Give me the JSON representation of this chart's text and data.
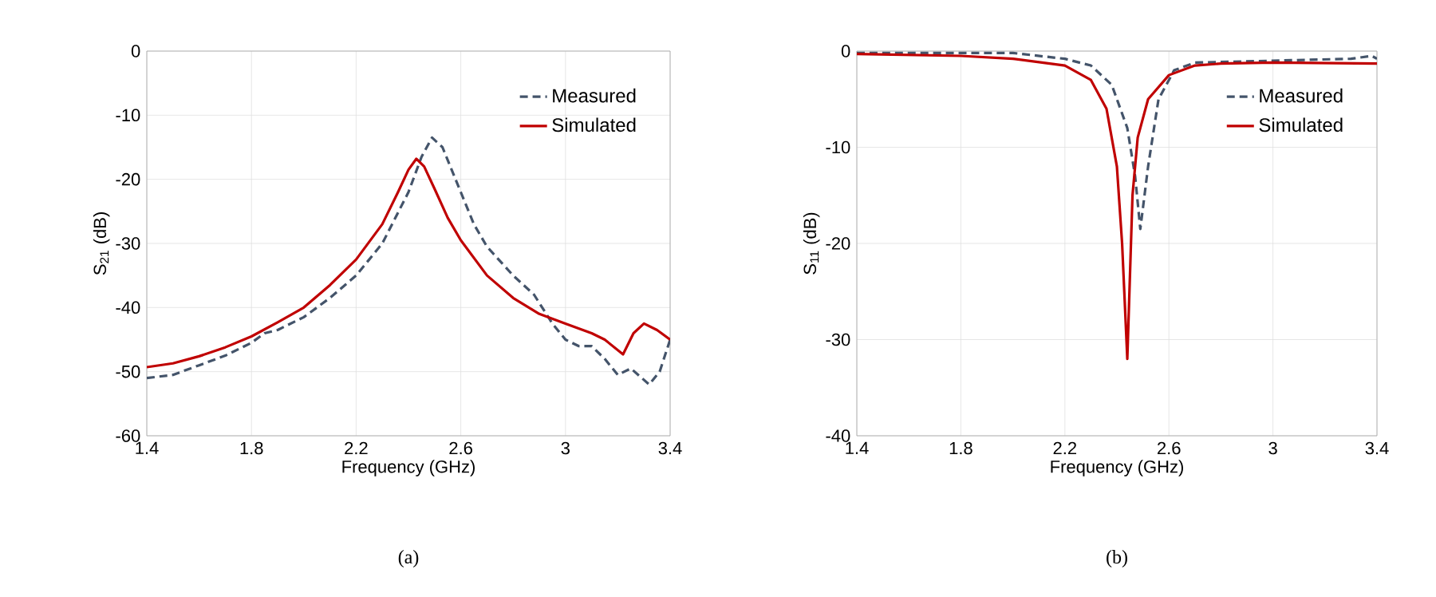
{
  "chart_data": [
    {
      "type": "line",
      "xlabel": "Frequency (GHz)",
      "ylabel": "S$_{21}$ (dB)",
      "annotations": [
        "(a)"
      ],
      "xlim": [
        1.4,
        3.4
      ],
      "xticks": [
        1.4,
        1.8,
        2.2,
        2.6,
        3,
        3.4
      ],
      "ylim": [
        -60,
        0
      ],
      "yticks": [
        -60,
        -50,
        -40,
        -30,
        -20,
        -10,
        0
      ],
      "grid": true,
      "legend": "top right",
      "series": [
        {
          "name": "Measured",
          "color": "#44546a",
          "line_style": "dashed",
          "x": [
            1.4,
            1.5,
            1.6,
            1.7,
            1.8,
            1.85,
            1.9,
            2.0,
            2.1,
            2.2,
            2.3,
            2.4,
            2.45,
            2.49,
            2.53,
            2.6,
            2.65,
            2.7,
            2.8,
            2.88,
            2.95,
            3.0,
            3.05,
            3.1,
            3.15,
            3.2,
            3.25,
            3.32,
            3.36,
            3.4
          ],
          "values": [
            -51,
            -50.5,
            -49,
            -47.5,
            -45.5,
            -44,
            -43.5,
            -41.5,
            -38.5,
            -35,
            -30,
            -22,
            -16.5,
            -13.5,
            -15,
            -22,
            -27,
            -30.5,
            -35,
            -38,
            -42.5,
            -45,
            -46,
            -46,
            -48,
            -50.5,
            -49.5,
            -52,
            -50,
            -45
          ]
        },
        {
          "name": "Simulated",
          "color": "#c00000",
          "line_style": "solid",
          "x": [
            1.4,
            1.5,
            1.6,
            1.7,
            1.8,
            1.9,
            2.0,
            2.1,
            2.2,
            2.3,
            2.36,
            2.4,
            2.43,
            2.46,
            2.5,
            2.55,
            2.6,
            2.7,
            2.8,
            2.9,
            3.0,
            3.1,
            3.15,
            3.22,
            3.26,
            3.3,
            3.35,
            3.4
          ],
          "values": [
            -49.3,
            -48.7,
            -47.6,
            -46.2,
            -44.5,
            -42.3,
            -40,
            -36.5,
            -32.5,
            -27,
            -22,
            -18.5,
            -16.8,
            -18,
            -21.5,
            -26,
            -29.5,
            -35,
            -38.5,
            -41,
            -42.5,
            -44,
            -45,
            -47.3,
            -44,
            -42.5,
            -43.5,
            -45
          ]
        }
      ]
    },
    {
      "type": "line",
      "xlabel": "Frequency (GHz)",
      "ylabel": "S$_{11}$ (dB)",
      "annotations": [
        "(b)"
      ],
      "xlim": [
        1.4,
        3.4
      ],
      "xticks": [
        1.4,
        1.8,
        2.2,
        2.6,
        3,
        3.4
      ],
      "ylim": [
        -40,
        0
      ],
      "yticks": [
        -40,
        -30,
        -20,
        -10,
        0
      ],
      "grid": true,
      "legend": "top right",
      "series": [
        {
          "name": "Measured",
          "color": "#44546a",
          "line_style": "dashed",
          "x": [
            1.4,
            2.0,
            2.2,
            2.3,
            2.38,
            2.44,
            2.47,
            2.49,
            2.52,
            2.56,
            2.62,
            2.7,
            3.0,
            3.3,
            3.38,
            3.4
          ],
          "values": [
            -0.2,
            -0.2,
            -0.8,
            -1.5,
            -3.5,
            -8,
            -13,
            -18.5,
            -12,
            -5,
            -2,
            -1.2,
            -1,
            -0.8,
            -0.5,
            -0.8
          ]
        },
        {
          "name": "Simulated",
          "color": "#c00000",
          "line_style": "solid",
          "x": [
            1.4,
            1.8,
            2.0,
            2.2,
            2.3,
            2.36,
            2.4,
            2.42,
            2.44,
            2.46,
            2.48,
            2.52,
            2.6,
            2.7,
            2.8,
            3.0,
            3.4
          ],
          "values": [
            -0.3,
            -0.5,
            -0.8,
            -1.5,
            -3,
            -6,
            -12,
            -20,
            -32,
            -15,
            -9,
            -5,
            -2.5,
            -1.5,
            -1.3,
            -1.2,
            -1.3
          ]
        }
      ]
    }
  ]
}
